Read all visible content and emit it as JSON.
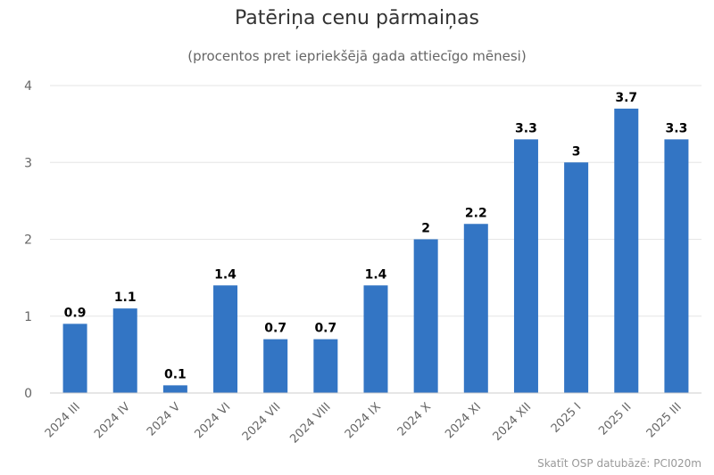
{
  "title": "Patēriņa cenu pārmaiņas",
  "subtitle": "(procentos pret iepriekšējā gada attiecīgo mēnesi)",
  "credit": "Skatīt OSP datubāzē: PCI020m",
  "colors": {
    "bar": "#3375c4",
    "grid": "#e6e6e6",
    "axis_text": "#666666",
    "label_text": "#000000"
  },
  "chart_data": {
    "type": "bar",
    "title": "Patēriņa cenu pārmaiņas",
    "subtitle": "(procentos pret iepriekšējā gada attiecīgo mēnesi)",
    "xlabel": "",
    "ylabel": "",
    "categories": [
      "2024 III",
      "2024 IV",
      "2024 V",
      "2024 VI",
      "2024 VII",
      "2024 VIII",
      "2024 IX",
      "2024 X",
      "2024 XI",
      "2024 XII",
      "2025 I",
      "2025 II",
      "2025 III"
    ],
    "values": [
      0.9,
      1.1,
      0.1,
      1.4,
      0.7,
      0.7,
      1.4,
      2,
      2.2,
      3.3,
      3,
      3.7,
      3.3
    ],
    "ylim": [
      0,
      4
    ],
    "yticks": [
      0,
      1,
      2,
      3,
      4
    ],
    "grid": true,
    "legend": "none"
  }
}
